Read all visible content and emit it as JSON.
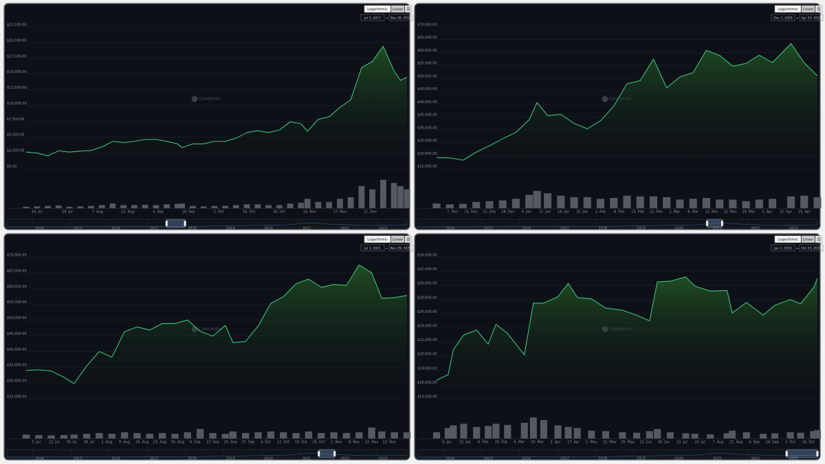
{
  "ui": {
    "log_button": "Logarithmic",
    "linear_button": "Linear",
    "range_arrow": "→",
    "watermark": "CoinGecko"
  },
  "navigator": {
    "xlim": [
      "2013-04-28",
      "2023-10-23"
    ],
    "ticks": [
      {
        "value": "2014-01-01",
        "label": "2014"
      },
      {
        "value": "2015-01-01",
        "label": "2015"
      },
      {
        "value": "2016-01-01",
        "label": "2016"
      },
      {
        "value": "2017-01-01",
        "label": "2017"
      },
      {
        "value": "2018-01-01",
        "label": "2018"
      },
      {
        "value": "2019-01-01",
        "label": "2019"
      },
      {
        "value": "2020-01-01",
        "label": "2020"
      },
      {
        "value": "2021-01-01",
        "label": "2021"
      },
      {
        "value": "2022-01-01",
        "label": "2022"
      },
      {
        "value": "2023-01-01",
        "label": "2023"
      }
    ]
  },
  "chart_data": [
    {
      "type": "area",
      "range_from": "Jul 5, 2017",
      "range_to": "Dec 28, 2017",
      "color": "#3fbf7f",
      "volume_color": "#555a60",
      "xlim": [
        "2017-07-05",
        "2017-12-28"
      ],
      "x": [
        "2017-07-05",
        "2017-07-10",
        "2017-07-15",
        "2017-07-20",
        "2017-07-25",
        "2017-07-30",
        "2017-08-04",
        "2017-08-09",
        "2017-08-14",
        "2017-08-19",
        "2017-08-24",
        "2017-08-29",
        "2017-09-03",
        "2017-09-08",
        "2017-09-13",
        "2017-09-15",
        "2017-09-20",
        "2017-09-25",
        "2017-09-30",
        "2017-10-05",
        "2017-10-10",
        "2017-10-15",
        "2017-10-20",
        "2017-10-25",
        "2017-10-30",
        "2017-11-04",
        "2017-11-09",
        "2017-11-12",
        "2017-11-17",
        "2017-11-22",
        "2017-11-27",
        "2017-12-02",
        "2017-12-07",
        "2017-12-12",
        "2017-12-17",
        "2017-12-22",
        "2017-12-25",
        "2017-12-28"
      ],
      "values": [
        2600,
        2450,
        2000,
        2800,
        2600,
        2750,
        2850,
        3400,
        4300,
        4100,
        4300,
        4600,
        4600,
        4300,
        3900,
        3300,
        3900,
        3900,
        4300,
        4300,
        4800,
        5700,
        6000,
        5700,
        6100,
        7400,
        7100,
        5900,
        7800,
        8200,
        9700,
        10900,
        16000,
        17000,
        19400,
        15500,
        14000,
        14500
      ],
      "volumes": [
        1,
        1.2,
        1.5,
        1.8,
        1,
        1.2,
        1.5,
        2,
        3,
        2,
        2,
        2.2,
        2,
        2.5,
        2.8,
        3,
        1.5,
        1.2,
        1.5,
        1.6,
        2,
        2.5,
        2.5,
        2,
        2,
        3,
        3.5,
        6,
        4,
        4,
        6,
        7,
        14,
        12,
        18,
        16,
        14,
        12
      ],
      "y2lim": [
        0,
        20
      ],
      "ylim": [
        0,
        22500
      ],
      "yticks": [
        {
          "value": 0,
          "label": "$0.00"
        },
        {
          "value": 2500,
          "label": "$2,500.00"
        },
        {
          "value": 5000,
          "label": "$5,000.00"
        },
        {
          "value": 7500,
          "label": "$7,500.00"
        },
        {
          "value": 10000,
          "label": "$10,000.00"
        },
        {
          "value": 12500,
          "label": "$12,500.00"
        },
        {
          "value": 15000,
          "label": "$15,000.00"
        },
        {
          "value": 17500,
          "label": "$17,500.00"
        },
        {
          "value": 20000,
          "label": "$20,000.00"
        },
        {
          "value": 22500,
          "label": "$22,500.00"
        }
      ],
      "xticks": [
        {
          "value": "2017-07-10",
          "label": "10. Jul"
        },
        {
          "value": "2017-07-24",
          "label": "24. Jul"
        },
        {
          "value": "2017-08-07",
          "label": "7. Aug"
        },
        {
          "value": "2017-08-21",
          "label": "21. Aug"
        },
        {
          "value": "2017-09-04",
          "label": "4. Sep"
        },
        {
          "value": "2017-09-18",
          "label": "18. Sep"
        },
        {
          "value": "2017-10-02",
          "label": "2. Oct"
        },
        {
          "value": "2017-10-16",
          "label": "16. Oct"
        },
        {
          "value": "2017-10-30",
          "label": "30. Oct"
        },
        {
          "value": "2017-11-13",
          "label": "13. Nov"
        },
        {
          "value": "2017-11-27",
          "label": "27. Nov"
        },
        {
          "value": "2017-12-11",
          "label": "11. Dec"
        }
      ]
    },
    {
      "type": "area",
      "range_from": "Dec 1, 2020",
      "range_to": "Apr 24, 2021",
      "color": "#3fbf7f",
      "volume_color": "#555a60",
      "xlim": [
        "2020-12-01",
        "2021-04-24"
      ],
      "x": [
        "2020-12-01",
        "2020-12-06",
        "2020-12-11",
        "2020-12-16",
        "2020-12-21",
        "2020-12-26",
        "2020-12-31",
        "2021-01-05",
        "2021-01-08",
        "2021-01-12",
        "2021-01-17",
        "2021-01-22",
        "2021-01-27",
        "2021-02-01",
        "2021-02-06",
        "2021-02-11",
        "2021-02-16",
        "2021-02-21",
        "2021-02-26",
        "2021-03-03",
        "2021-03-08",
        "2021-03-13",
        "2021-03-18",
        "2021-03-23",
        "2021-03-28",
        "2021-04-02",
        "2021-04-07",
        "2021-04-14",
        "2021-04-19",
        "2021-04-24"
      ],
      "values": [
        19200,
        19100,
        18200,
        21300,
        23800,
        26500,
        29000,
        33900,
        40600,
        35500,
        36000,
        32500,
        30400,
        33500,
        39200,
        47900,
        49100,
        57500,
        46300,
        50500,
        52200,
        60900,
        58900,
        54700,
        55800,
        59000,
        56100,
        63500,
        56000,
        51000
      ],
      "volumes": [
        30,
        25,
        28,
        40,
        45,
        50,
        60,
        85,
        110,
        95,
        80,
        70,
        70,
        60,
        65,
        80,
        75,
        75,
        70,
        55,
        60,
        65,
        55,
        55,
        45,
        55,
        60,
        75,
        80,
        70
      ],
      "y2lim": [
        0,
        200
      ],
      "ylim": [
        15000,
        70000
      ],
      "yticks": [
        {
          "value": 15000,
          "label": "$15,000.00"
        },
        {
          "value": 20000,
          "label": "$20,000.00"
        },
        {
          "value": 25000,
          "label": "$25,000.00"
        },
        {
          "value": 30000,
          "label": "$30,000.00"
        },
        {
          "value": 35000,
          "label": "$35,000.00"
        },
        {
          "value": 40000,
          "label": "$40,000.00"
        },
        {
          "value": 45000,
          "label": "$45,000.00"
        },
        {
          "value": 50000,
          "label": "$50,000.00"
        },
        {
          "value": 55000,
          "label": "$55,000.00"
        },
        {
          "value": 60000,
          "label": "$60,000.00"
        },
        {
          "value": 65000,
          "label": "$65,000.00"
        },
        {
          "value": 70000,
          "label": "$70,000.00"
        }
      ],
      "xticks": [
        {
          "value": "2020-12-07",
          "label": "7. Dec"
        },
        {
          "value": "2020-12-14",
          "label": "14. Dec"
        },
        {
          "value": "2020-12-21",
          "label": "21. Dec"
        },
        {
          "value": "2020-12-28",
          "label": "28. Dec"
        },
        {
          "value": "2021-01-04",
          "label": "4. Jan"
        },
        {
          "value": "2021-01-11",
          "label": "11. Jan"
        },
        {
          "value": "2021-01-18",
          "label": "18. Jan"
        },
        {
          "value": "2021-01-25",
          "label": "25. Jan"
        },
        {
          "value": "2021-02-01",
          "label": "1. Feb"
        },
        {
          "value": "2021-02-08",
          "label": "8. Feb"
        },
        {
          "value": "2021-02-15",
          "label": "15. Feb"
        },
        {
          "value": "2021-02-22",
          "label": "22. Feb"
        },
        {
          "value": "2021-03-01",
          "label": "1. Mar"
        },
        {
          "value": "2021-03-08",
          "label": "8. Mar"
        },
        {
          "value": "2021-03-15",
          "label": "15. Mar"
        },
        {
          "value": "2021-03-22",
          "label": "22. Mar"
        },
        {
          "value": "2021-03-29",
          "label": "29. Mar"
        },
        {
          "value": "2021-04-05",
          "label": "5. Apr"
        },
        {
          "value": "2021-04-12",
          "label": "12. Apr"
        },
        {
          "value": "2021-04-19",
          "label": "19. Apr"
        }
      ]
    },
    {
      "type": "area",
      "range_from": "Jul 1, 2021",
      "range_to": "Nov 29, 2021",
      "color": "#3fbf7f",
      "volume_color": "#555a60",
      "xlim": [
        "2021-07-01",
        "2021-11-29"
      ],
      "x": [
        "2021-07-01",
        "2021-07-06",
        "2021-07-11",
        "2021-07-16",
        "2021-07-20",
        "2021-07-25",
        "2021-07-30",
        "2021-08-04",
        "2021-08-09",
        "2021-08-14",
        "2021-08-19",
        "2021-08-24",
        "2021-08-29",
        "2021-09-03",
        "2021-09-08",
        "2021-09-13",
        "2021-09-18",
        "2021-09-21",
        "2021-09-26",
        "2021-10-01",
        "2021-10-06",
        "2021-10-11",
        "2021-10-16",
        "2021-10-21",
        "2021-10-26",
        "2021-10-31",
        "2021-11-05",
        "2021-11-10",
        "2021-11-15",
        "2021-11-19",
        "2021-11-24",
        "2021-11-29"
      ],
      "values": [
        34000,
        34200,
        33800,
        31800,
        29800,
        35400,
        40000,
        38200,
        46300,
        47800,
        46800,
        48900,
        48900,
        50000,
        46400,
        44900,
        48300,
        42800,
        43200,
        48100,
        55300,
        57400,
        61500,
        63000,
        60400,
        61300,
        61000,
        67500,
        65000,
        56900,
        57100,
        57800
      ],
      "volumes": [
        25,
        22,
        20,
        22,
        25,
        30,
        35,
        30,
        40,
        35,
        30,
        35,
        30,
        40,
        60,
        35,
        30,
        45,
        35,
        40,
        45,
        40,
        35,
        45,
        35,
        40,
        35,
        40,
        70,
        45,
        40,
        40
      ],
      "y2lim": [
        0,
        200
      ],
      "ylim": [
        25000,
        70000
      ],
      "yticks": [
        {
          "value": 25000,
          "label": "$25,000.00"
        },
        {
          "value": 30000,
          "label": "$30,000.00"
        },
        {
          "value": 35000,
          "label": "$35,000.00"
        },
        {
          "value": 40000,
          "label": "$40,000.00"
        },
        {
          "value": 45000,
          "label": "$45,000.00"
        },
        {
          "value": 50000,
          "label": "$50,000.00"
        },
        {
          "value": 55000,
          "label": "$55,000.00"
        },
        {
          "value": 60000,
          "label": "$60,000.00"
        },
        {
          "value": 65000,
          "label": "$65,000.00"
        },
        {
          "value": 70000,
          "label": "$70,000.00"
        }
      ],
      "xticks": [
        {
          "value": "2021-07-05",
          "label": "5. Jul"
        },
        {
          "value": "2021-07-12",
          "label": "12. Jul"
        },
        {
          "value": "2021-07-19",
          "label": "19. Jul"
        },
        {
          "value": "2021-07-26",
          "label": "26. Jul"
        },
        {
          "value": "2021-08-02",
          "label": "2. Aug"
        },
        {
          "value": "2021-08-09",
          "label": "9. Aug"
        },
        {
          "value": "2021-08-16",
          "label": "16. Aug"
        },
        {
          "value": "2021-08-23",
          "label": "23. Aug"
        },
        {
          "value": "2021-08-30",
          "label": "30. Aug"
        },
        {
          "value": "2021-09-06",
          "label": "6. Sep"
        },
        {
          "value": "2021-09-13",
          "label": "13. Sep"
        },
        {
          "value": "2021-09-20",
          "label": "20. Sep"
        },
        {
          "value": "2021-09-27",
          "label": "27. Sep"
        },
        {
          "value": "2021-10-04",
          "label": "4. Oct"
        },
        {
          "value": "2021-10-11",
          "label": "11. Oct"
        },
        {
          "value": "2021-10-18",
          "label": "18. Oct"
        },
        {
          "value": "2021-10-25",
          "label": "25. Oct"
        },
        {
          "value": "2021-11-01",
          "label": "1. Nov"
        },
        {
          "value": "2021-11-08",
          "label": "8. Nov"
        },
        {
          "value": "2021-11-15",
          "label": "15. Nov"
        },
        {
          "value": "2021-11-22",
          "label": "22. Nov"
        }
      ]
    },
    {
      "type": "area",
      "range_from": "Jan 1, 2023",
      "range_to": "Oct 23, 2023",
      "color": "#3fbf7f",
      "volume_color": "#555a60",
      "xlim": [
        "2023-01-01",
        "2023-10-23"
      ],
      "x": [
        "2023-01-01",
        "2023-01-10",
        "2023-01-14",
        "2023-01-22",
        "2023-02-01",
        "2023-02-10",
        "2023-02-16",
        "2023-02-25",
        "2023-03-10",
        "2023-03-17",
        "2023-03-25",
        "2023-04-05",
        "2023-04-13",
        "2023-04-20",
        "2023-05-01",
        "2023-05-12",
        "2023-05-25",
        "2023-06-05",
        "2023-06-15",
        "2023-06-21",
        "2023-07-01",
        "2023-07-13",
        "2023-07-20",
        "2023-08-01",
        "2023-08-14",
        "2023-08-18",
        "2023-08-29",
        "2023-09-11",
        "2023-09-20",
        "2023-10-02",
        "2023-10-10",
        "2023-10-20",
        "2023-10-23"
      ],
      "values": [
        16600,
        17400,
        20900,
        23000,
        23700,
        21700,
        24500,
        23200,
        20200,
        27500,
        27500,
        28400,
        30300,
        28300,
        28100,
        26800,
        26500,
        25800,
        25000,
        30500,
        30600,
        31200,
        29900,
        29200,
        29300,
        26100,
        27600,
        25800,
        27200,
        28000,
        27400,
        29700,
        31000
      ],
      "volumes": [
        12,
        20,
        25,
        28,
        22,
        24,
        28,
        26,
        30,
        40,
        35,
        25,
        22,
        20,
        15,
        14,
        12,
        11,
        14,
        18,
        12,
        10,
        9,
        8,
        10,
        15,
        12,
        9,
        10,
        12,
        11,
        14,
        16
      ],
      "y2lim": [
        0,
        60
      ],
      "ylim": [
        14000,
        34000
      ],
      "yticks": [
        {
          "value": 14000,
          "label": "$14,000.00"
        },
        {
          "value": 16000,
          "label": "$16,000.00"
        },
        {
          "value": 18000,
          "label": "$18,000.00"
        },
        {
          "value": 20000,
          "label": "$20,000.00"
        },
        {
          "value": 22000,
          "label": "$22,000.00"
        },
        {
          "value": 24000,
          "label": "$24,000.00"
        },
        {
          "value": 26000,
          "label": "$26,000.00"
        },
        {
          "value": 28000,
          "label": "$28,000.00"
        },
        {
          "value": 30000,
          "label": "$30,000.00"
        },
        {
          "value": 32000,
          "label": "$32,000.00"
        },
        {
          "value": 34000,
          "label": "$34,000.00"
        }
      ],
      "xticks": [
        {
          "value": "2023-01-09",
          "label": "9. Jan"
        },
        {
          "value": "2023-01-23",
          "label": "23. Jan"
        },
        {
          "value": "2023-02-06",
          "label": "6. Feb"
        },
        {
          "value": "2023-02-20",
          "label": "20. Feb"
        },
        {
          "value": "2023-03-06",
          "label": "6. Mar"
        },
        {
          "value": "2023-03-20",
          "label": "20. Mar"
        },
        {
          "value": "2023-04-03",
          "label": "3. Apr"
        },
        {
          "value": "2023-04-17",
          "label": "17. Apr"
        },
        {
          "value": "2023-05-01",
          "label": "1. May"
        },
        {
          "value": "2023-05-15",
          "label": "15. May"
        },
        {
          "value": "2023-05-29",
          "label": "29. May"
        },
        {
          "value": "2023-06-12",
          "label": "12. Jun"
        },
        {
          "value": "2023-06-26",
          "label": "26. Jun"
        },
        {
          "value": "2023-07-10",
          "label": "10. Jul"
        },
        {
          "value": "2023-07-24",
          "label": "24. Jul"
        },
        {
          "value": "2023-08-07",
          "label": "7. Aug"
        },
        {
          "value": "2023-08-21",
          "label": "21. Aug"
        },
        {
          "value": "2023-09-04",
          "label": "4. Sep"
        },
        {
          "value": "2023-09-18",
          "label": "18. Sep"
        },
        {
          "value": "2023-10-02",
          "label": "2. Oct"
        },
        {
          "value": "2023-10-16",
          "label": "16. Oct"
        }
      ]
    }
  ]
}
